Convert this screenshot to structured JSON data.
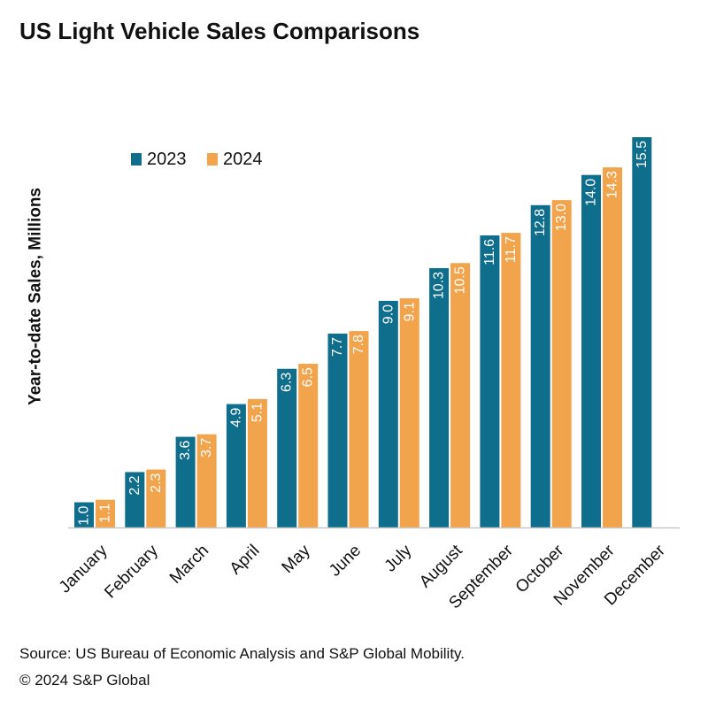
{
  "chart_data": {
    "type": "bar",
    "title": "US Light Vehicle Sales Comparisons",
    "ylabel": "Year-to-date Sales, Millions",
    "xlabel": "",
    "ylim": [
      0,
      16
    ],
    "grid": false,
    "legend_position": "top-left",
    "categories": [
      "January",
      "February",
      "March",
      "April",
      "May",
      "June",
      "July",
      "August",
      "September",
      "October",
      "November",
      "December"
    ],
    "series": [
      {
        "name": "2023",
        "color": "#0f6e8c",
        "values": [
          1.0,
          2.2,
          3.6,
          4.9,
          6.3,
          7.7,
          9.0,
          10.3,
          11.6,
          12.8,
          14.0,
          15.5
        ],
        "labels": [
          "1.0",
          "2.2",
          "3.6",
          "4.9",
          "6.3",
          "7.7",
          "9.0",
          "10.3",
          "11.6",
          "12.8",
          "14.0",
          "15.5"
        ]
      },
      {
        "name": "2024",
        "color": "#f2a44c",
        "values": [
          1.1,
          2.3,
          3.7,
          5.1,
          6.5,
          7.8,
          9.1,
          10.5,
          11.7,
          13.0,
          14.3,
          null
        ],
        "labels": [
          "1.1",
          "2.3",
          "3.7",
          "5.1",
          "6.5",
          "7.8",
          "9.1",
          "10.5",
          "11.7",
          "13.0",
          "14.3",
          null
        ]
      }
    ]
  },
  "footer": {
    "source": "Source: US Bureau of Economic Analysis and S&P Global Mobility.",
    "copyright": "© 2024 S&P Global"
  }
}
